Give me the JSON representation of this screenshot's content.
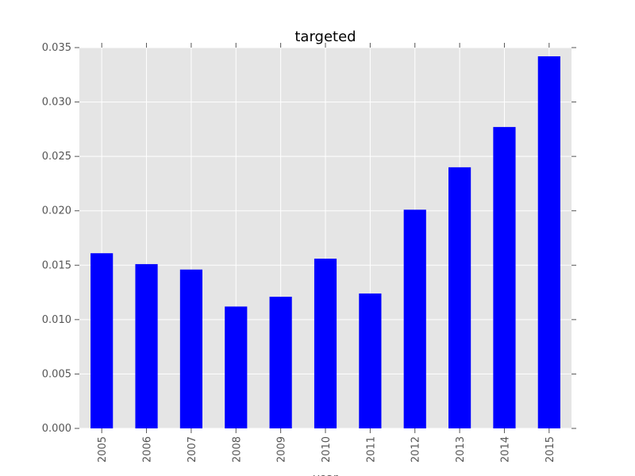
{
  "chart_data": {
    "type": "bar",
    "title": "targeted",
    "xlabel": "year",
    "ylabel": "",
    "categories": [
      "2005",
      "2006",
      "2007",
      "2008",
      "2009",
      "2010",
      "2011",
      "2012",
      "2013",
      "2014",
      "2015"
    ],
    "series": [
      {
        "values": [
          0.0161,
          0.0151,
          0.0146,
          0.0112,
          0.0121,
          0.0156,
          0.0124,
          0.0201,
          0.024,
          0.0277,
          0.0342
        ]
      }
    ],
    "ylim": [
      0,
      0.035
    ],
    "yticks": [
      "0.000",
      "0.005",
      "0.010",
      "0.015",
      "0.020",
      "0.025",
      "0.030",
      "0.035"
    ],
    "grid": true,
    "legend": "none",
    "colors": {
      "bar": "#0000ff",
      "plot_background": "#e5e5e5",
      "grid": "#ffffff",
      "tick_text": "#555555"
    }
  }
}
